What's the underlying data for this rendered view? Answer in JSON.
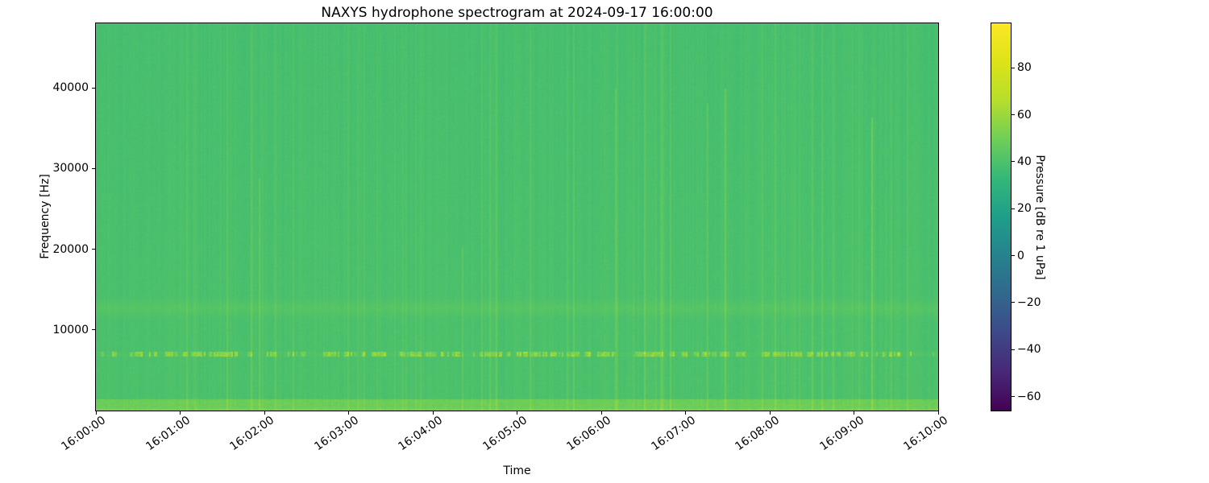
{
  "colors": {
    "background": "#ffffff",
    "text": "#000000",
    "spine": "#000000"
  },
  "chart_data": {
    "type": "heatmap",
    "subtype": "spectrogram",
    "title": "NAXYS hydrophone spectrogram at 2024-09-17 16:00:00",
    "xlabel": "Time",
    "ylabel": "Frequency [Hz]",
    "x_tick_labels": [
      "16:00:00",
      "16:01:00",
      "16:02:00",
      "16:03:00",
      "16:04:00",
      "16:05:00",
      "16:06:00",
      "16:07:00",
      "16:08:00",
      "16:09:00",
      "16:10:00"
    ],
    "y_tick_values": [
      10000,
      20000,
      30000,
      40000
    ],
    "y_tick_labels": [
      "10000",
      "20000",
      "30000",
      "40000"
    ],
    "x_range": [
      "16:00:00",
      "16:10:00"
    ],
    "y_range_hz": [
      0,
      48000
    ],
    "grid": false,
    "legend": "none",
    "colormap": "viridis",
    "colorbar": {
      "label": "Pressure [dB re 1 uPa]",
      "tick_values": [
        80,
        60,
        40,
        20,
        0,
        -20,
        -40,
        -60
      ],
      "tick_labels": [
        "80",
        "60",
        "40",
        "20",
        "0",
        "−20",
        "−40",
        "−60"
      ],
      "vmin": -66,
      "vmax": 99,
      "colormap_stops": [
        [
          0.0,
          "#440154"
        ],
        [
          0.1,
          "#482878"
        ],
        [
          0.2,
          "#3e4989"
        ],
        [
          0.3,
          "#31688e"
        ],
        [
          0.4,
          "#26828e"
        ],
        [
          0.5,
          "#1f9e89"
        ],
        [
          0.6,
          "#35b779"
        ],
        [
          0.7,
          "#6ece58"
        ],
        [
          0.8,
          "#b5de2b"
        ],
        [
          0.9,
          "#dde318"
        ],
        [
          1.0,
          "#fde725"
        ]
      ]
    },
    "content_summary": {
      "background_db": 40,
      "background_tilt_db_at_top": -1.5,
      "features": [
        {
          "kind": "low-frequency-band",
          "freq_hz": [
            0,
            1400
          ],
          "boost_db": 9,
          "noise_db": 4
        },
        {
          "kind": "tonal-dashes",
          "freq_hz": 7000,
          "half_width_hz": 320,
          "boost_db": 13,
          "toggle_prob": 0.3
        },
        {
          "kind": "broad-band",
          "center_hz": 12700,
          "sigma_hz": 900,
          "boost_db": 3
        },
        {
          "kind": "vertical-streaks",
          "probability": 0.08,
          "min_db": 2,
          "max_db": 7
        },
        {
          "kind": "tall-transients",
          "probability": 0.012,
          "min_db": 5,
          "max_db": 11
        }
      ],
      "seed": 20240917
    }
  }
}
